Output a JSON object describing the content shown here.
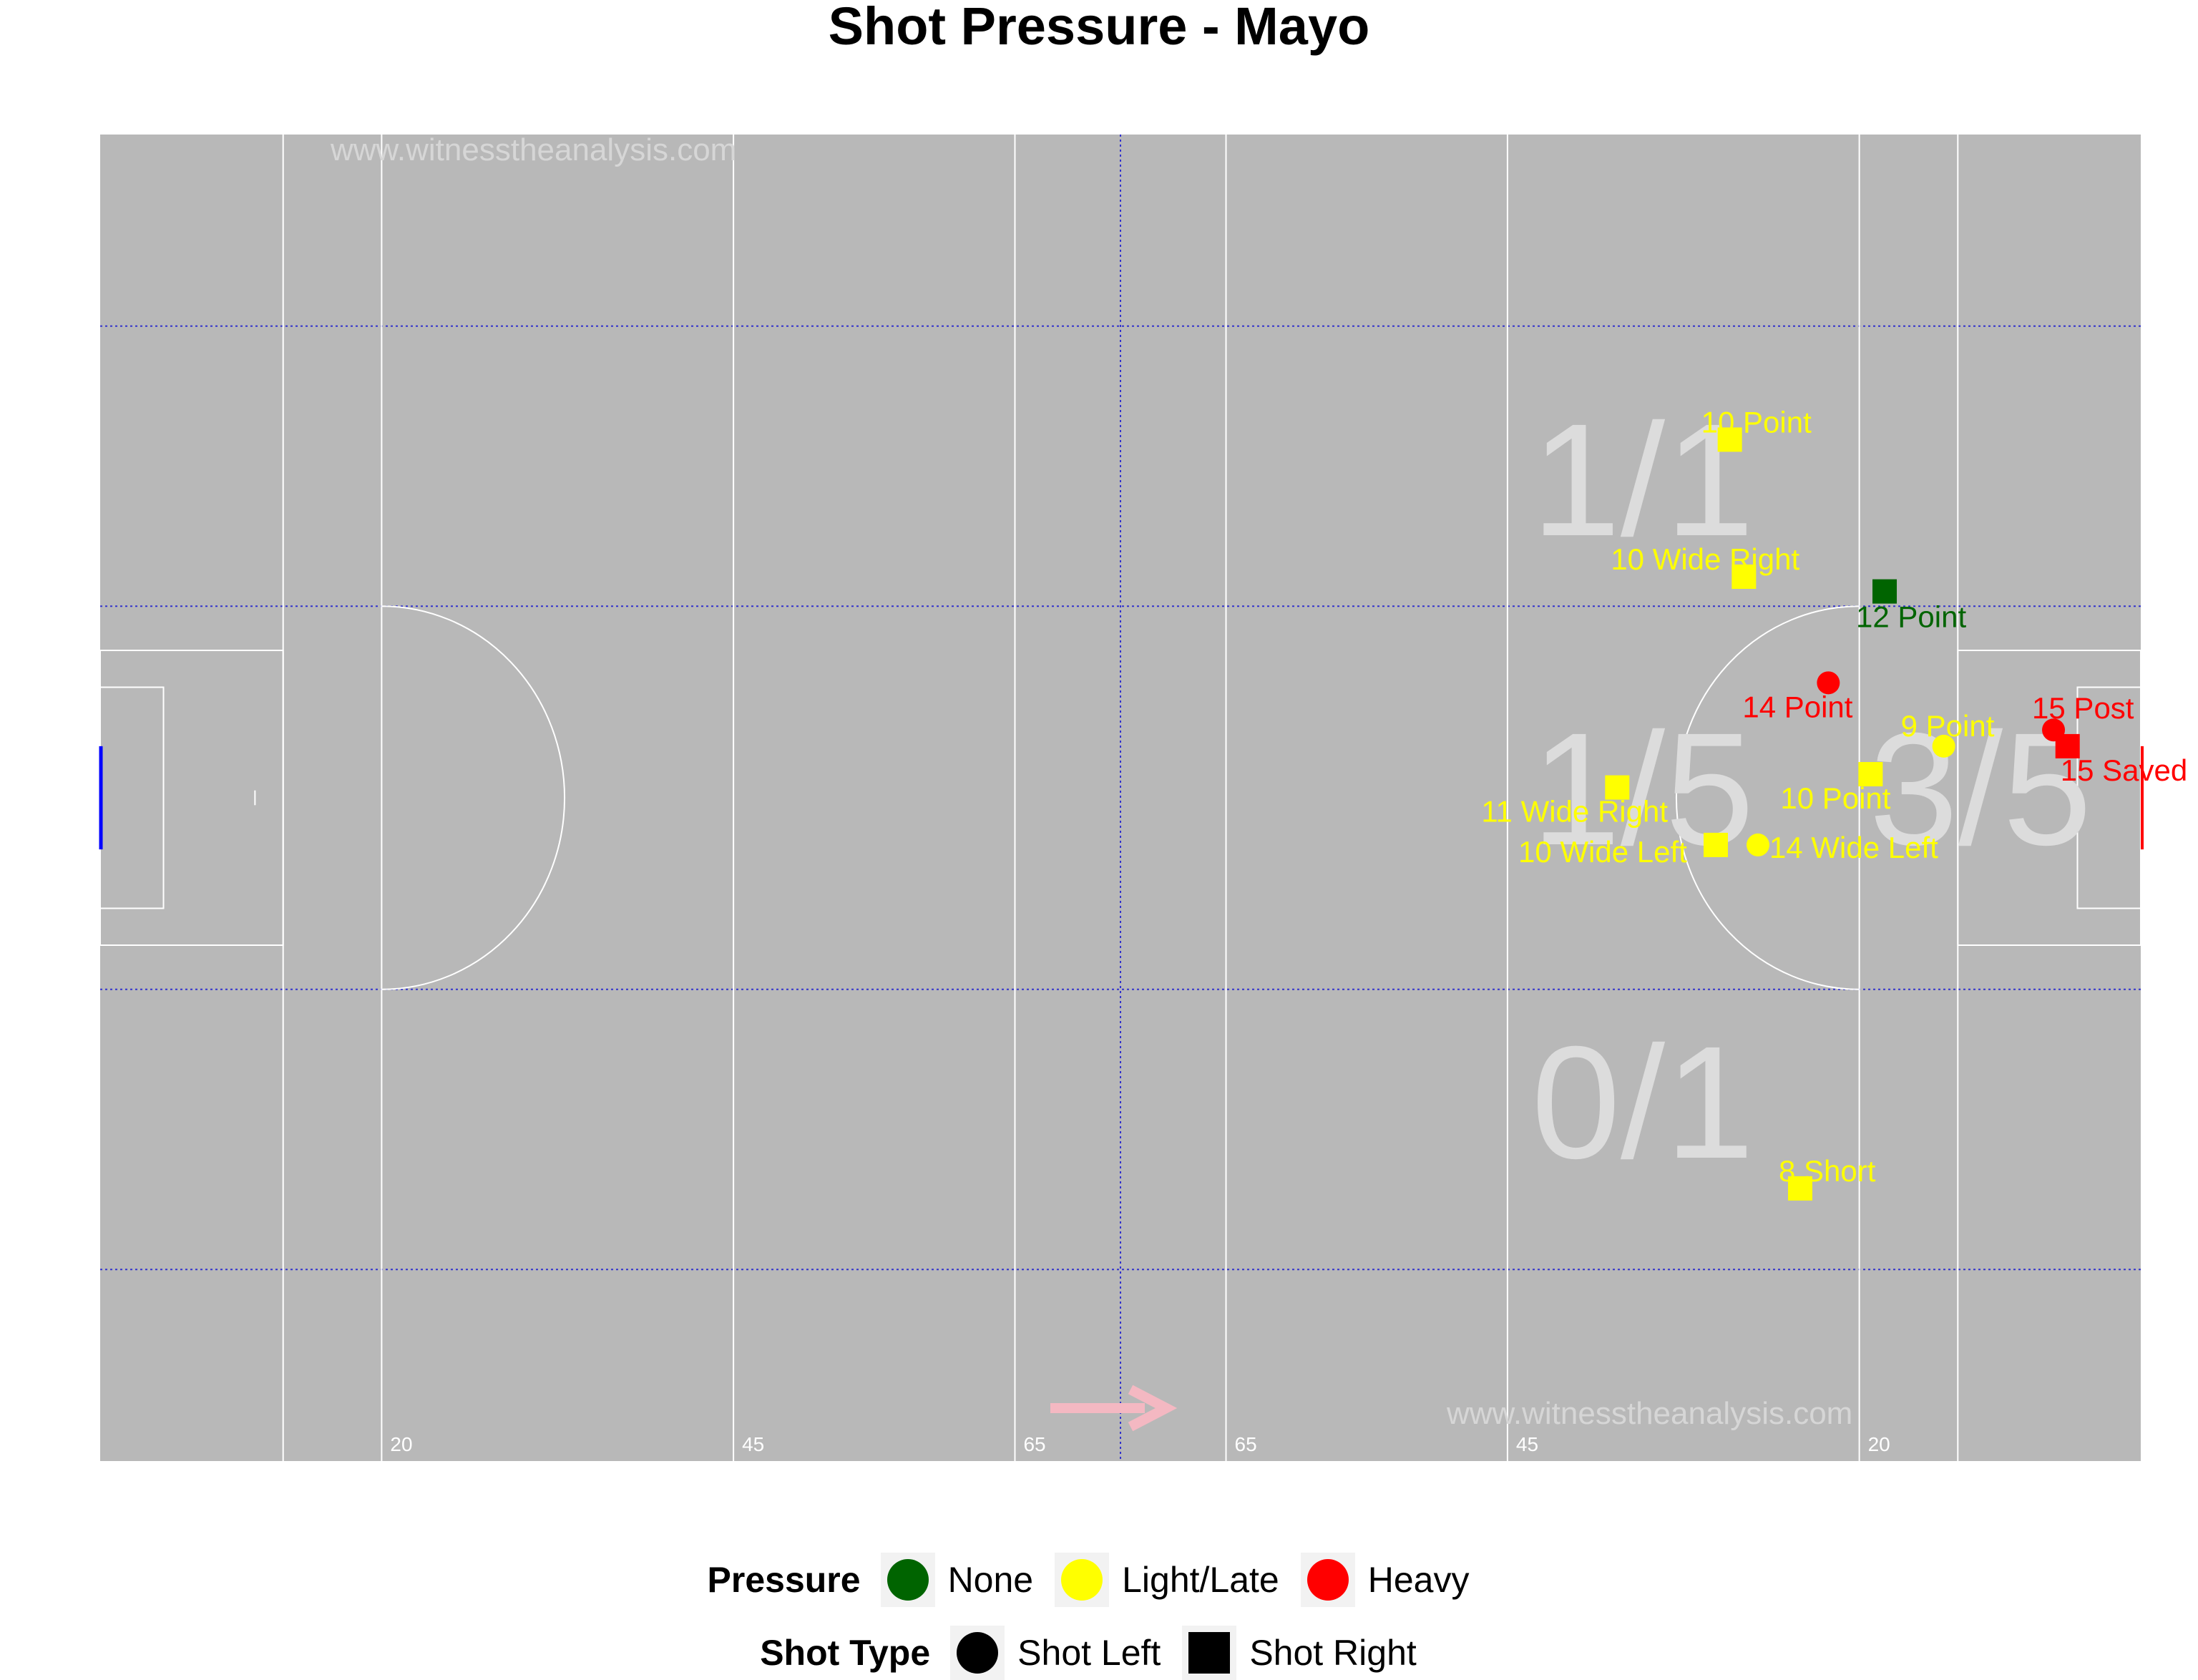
{
  "chart_data": {
    "type": "scatter",
    "title": "Shot Pressure - Mayo",
    "watermark": "www.witnesstheanalysis.com",
    "pitch_line_labels": [
      "20",
      "45",
      "65",
      "65",
      "45",
      "20"
    ],
    "zone_labels": [
      {
        "text": "1/1",
        "zone": "upper-middle"
      },
      {
        "text": "1/5",
        "zone": "center-left"
      },
      {
        "text": "3/5",
        "zone": "center-right"
      },
      {
        "text": "0/1",
        "zone": "lower-middle"
      }
    ],
    "x_range": [
      0,
      145
    ],
    "y_range": [
      0,
      90
    ],
    "shots": [
      {
        "x": 115.8,
        "y": 69.3,
        "label": "10 Point",
        "pressure": "Light/Late",
        "shot_type": "Shot Right"
      },
      {
        "x": 116.8,
        "y": 60.0,
        "label": "10 Wide Right",
        "pressure": "Light/Late",
        "shot_type": "Shot Right"
      },
      {
        "x": 126.8,
        "y": 59.0,
        "label": "12 Point",
        "pressure": "None",
        "shot_type": "Shot Right"
      },
      {
        "x": 122.8,
        "y": 52.8,
        "label": "14 Point",
        "pressure": "Heavy",
        "shot_type": "Shot Left"
      },
      {
        "x": 138.8,
        "y": 49.6,
        "label": "15 Post",
        "pressure": "Heavy",
        "shot_type": "Shot Left"
      },
      {
        "x": 131.0,
        "y": 48.5,
        "label": "9 Point",
        "pressure": "Light/Late",
        "shot_type": "Shot Left"
      },
      {
        "x": 139.8,
        "y": 48.5,
        "label": "15 Saved",
        "pressure": "Heavy",
        "shot_type": "Shot Right"
      },
      {
        "x": 125.8,
        "y": 46.6,
        "label": "10 Point",
        "pressure": "Light/Late",
        "shot_type": "Shot Right"
      },
      {
        "x": 107.8,
        "y": 45.7,
        "label": "11 Wide Right",
        "pressure": "Light/Late",
        "shot_type": "Shot Right"
      },
      {
        "x": 114.8,
        "y": 41.8,
        "label": "10 Wide Left",
        "pressure": "Light/Late",
        "shot_type": "Shot Right"
      },
      {
        "x": 117.8,
        "y": 41.8,
        "label": "14 Wide Left",
        "pressure": "Light/Late",
        "shot_type": "Shot Left"
      },
      {
        "x": 120.8,
        "y": 18.5,
        "label": "8 Short",
        "pressure": "Light/Late",
        "shot_type": "Shot Right"
      }
    ],
    "pressure_colors": {
      "None": "#006400",
      "Light/Late": "#ffff00",
      "Heavy": "#ff0000"
    },
    "legend_placement": "bottom"
  },
  "legend": {
    "pressure_title": "Pressure",
    "pressure_items": [
      {
        "label": "None",
        "color": "#006400"
      },
      {
        "label": "Light/Late",
        "color": "#ffff00"
      },
      {
        "label": "Heavy",
        "color": "#ff0000"
      }
    ],
    "shot_type_title": "Shot Type",
    "shot_type_items": [
      {
        "label": "Shot Left",
        "shape": "circle"
      },
      {
        "label": "Shot Right",
        "shape": "square"
      }
    ]
  },
  "colors": {
    "pitch": "#b8b8b8",
    "lines": "#ffffff",
    "grid": "#3333cc",
    "zone_text": "#dcdcdc",
    "arrow": "#f4b8c2",
    "left_goal": "#0000ff",
    "right_goal": "#ff0000"
  }
}
